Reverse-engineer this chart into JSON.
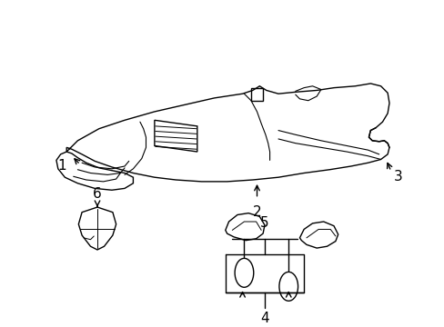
{
  "background_color": "#ffffff",
  "line_color": "#000000",
  "fig_width": 4.89,
  "fig_height": 3.6,
  "dpi": 100,
  "label_fontsize": 11
}
